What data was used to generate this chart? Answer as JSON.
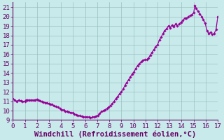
{
  "title": "",
  "xlabel": "Windchill (Refroidissement éolien,°C)",
  "ylabel": "",
  "xlim": [
    0,
    17
  ],
  "ylim": [
    9,
    21.5
  ],
  "yticks": [
    9,
    10,
    11,
    12,
    13,
    14,
    15,
    16,
    17,
    18,
    19,
    20,
    21
  ],
  "xticks": [
    0,
    1,
    2,
    3,
    4,
    5,
    6,
    7,
    8,
    9,
    10,
    11,
    12,
    13,
    14,
    15,
    16,
    17
  ],
  "bg_color": "#c8eaea",
  "line_color": "#990099",
  "grid_color": "#9bbfbf",
  "x": [
    0.0,
    0.15,
    0.3,
    0.5,
    0.65,
    0.8,
    1.0,
    1.1,
    1.2,
    1.4,
    1.55,
    1.7,
    1.85,
    2.0,
    2.1,
    2.25,
    2.4,
    2.55,
    2.7,
    2.85,
    3.0,
    3.1,
    3.25,
    3.4,
    3.6,
    3.75,
    3.9,
    4.05,
    4.2,
    4.35,
    4.5,
    4.65,
    4.8,
    4.95,
    5.1,
    5.25,
    5.4,
    5.55,
    5.7,
    5.85,
    6.0,
    6.15,
    6.3,
    6.45,
    6.6,
    6.75,
    6.9,
    7.05,
    7.2,
    7.35,
    7.5,
    7.65,
    7.8,
    7.95,
    8.1,
    8.25,
    8.4,
    8.55,
    8.7,
    8.85,
    9.0,
    9.15,
    9.3,
    9.45,
    9.6,
    9.75,
    9.9,
    10.05,
    10.2,
    10.35,
    10.5,
    10.65,
    10.8,
    10.95,
    11.1,
    11.25,
    11.4,
    11.55,
    11.7,
    11.85,
    12.0,
    12.15,
    12.3,
    12.45,
    12.6,
    12.75,
    12.9,
    13.05,
    13.2,
    13.35,
    13.5,
    13.65,
    13.8,
    13.95,
    14.1,
    14.25,
    14.4,
    14.55,
    14.7,
    14.85,
    15.0,
    15.1,
    15.2,
    15.35,
    15.5,
    15.65,
    15.8,
    15.95,
    16.1,
    16.25,
    16.4,
    16.55,
    16.7,
    16.85,
    17.0
  ],
  "y": [
    11.3,
    11.15,
    11.0,
    11.1,
    11.05,
    11.0,
    11.0,
    11.1,
    11.15,
    11.1,
    11.15,
    11.1,
    11.15,
    11.2,
    11.1,
    11.05,
    11.0,
    10.9,
    10.85,
    10.8,
    10.75,
    10.7,
    10.65,
    10.55,
    10.45,
    10.35,
    10.2,
    10.1,
    10.05,
    9.95,
    9.9,
    9.85,
    9.8,
    9.75,
    9.65,
    9.55,
    9.5,
    9.45,
    9.4,
    9.35,
    9.3,
    9.3,
    9.3,
    9.25,
    9.3,
    9.35,
    9.4,
    9.5,
    9.7,
    9.9,
    10.0,
    10.1,
    10.2,
    10.4,
    10.55,
    10.75,
    11.0,
    11.3,
    11.5,
    11.8,
    12.0,
    12.3,
    12.7,
    13.0,
    13.3,
    13.6,
    13.9,
    14.1,
    14.5,
    14.8,
    15.0,
    15.2,
    15.35,
    15.4,
    15.4,
    15.6,
    15.9,
    16.2,
    16.5,
    16.8,
    17.0,
    17.5,
    17.8,
    18.2,
    18.5,
    18.7,
    19.0,
    18.8,
    19.1,
    18.9,
    19.2,
    19.0,
    19.2,
    19.4,
    19.6,
    19.8,
    19.8,
    20.0,
    20.1,
    20.2,
    20.4,
    21.2,
    20.9,
    20.6,
    20.3,
    20.0,
    19.7,
    19.3,
    18.5,
    18.2,
    18.3,
    18.1,
    18.2,
    18.6,
    20.0
  ],
  "marker": "D",
  "marker_size": 1.8,
  "linewidth": 0.9,
  "tick_fontsize": 6.5,
  "xlabel_fontsize": 7.5
}
